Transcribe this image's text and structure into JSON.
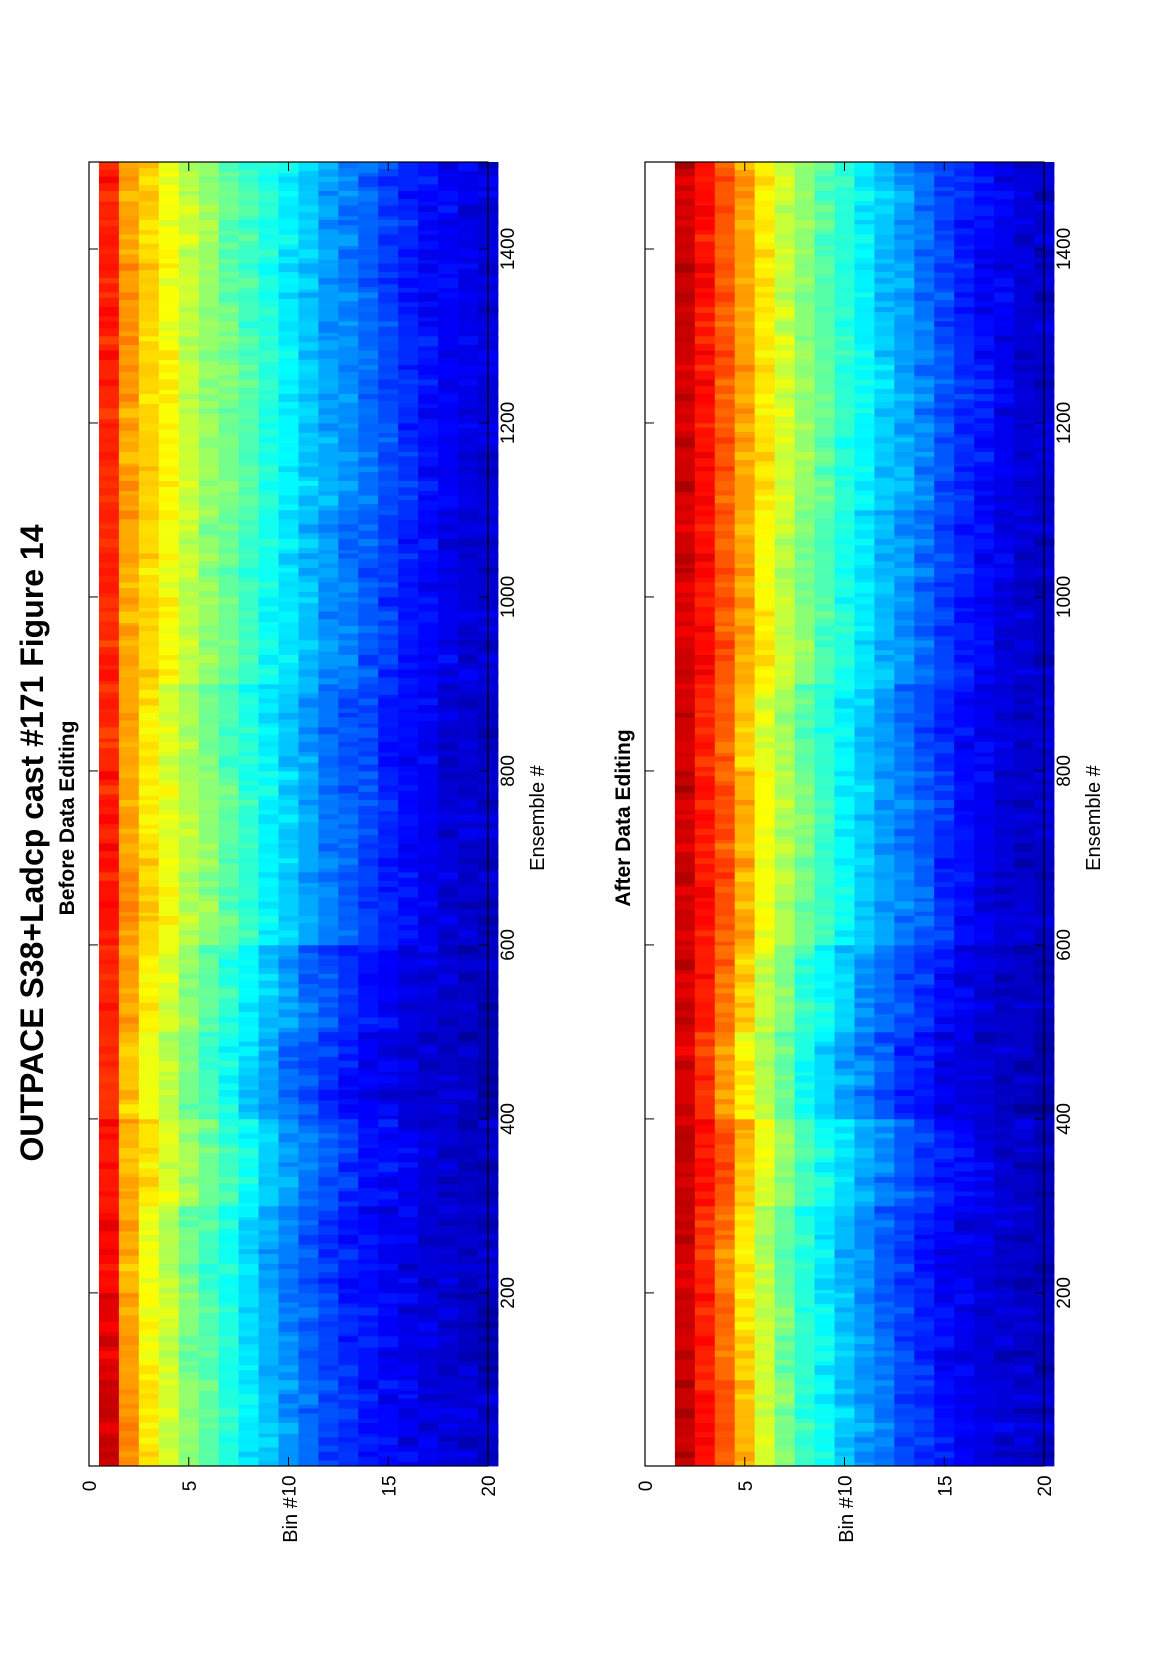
{
  "figure_title": "OUTPACE S38+Ladcp cast #171  Figure 14",
  "orientation": "rotated 90° counter-clockwise",
  "colormap": "jet",
  "chart_data": [
    {
      "type": "heatmap",
      "title": "Before Data Editing",
      "xlabel": "Ensemble #",
      "ylabel": "Bin #",
      "xlim": [
        1,
        1500
      ],
      "ylim": [
        0,
        20
      ],
      "y_reversed": true,
      "x_ticks": [
        200,
        400,
        600,
        800,
        1000,
        1200,
        1400
      ],
      "y_ticks": [
        0,
        5,
        10,
        15,
        20
      ],
      "x_tick_labels": [
        "200",
        "400",
        "600",
        "800",
        "1000",
        "1200",
        "1400"
      ],
      "y_tick_labels": [
        "0",
        "5",
        "10",
        "15",
        "20"
      ],
      "bins": [
        1,
        2,
        3,
        4,
        5,
        6,
        7,
        8,
        9,
        10,
        11,
        12,
        13,
        14,
        15,
        16,
        17,
        18,
        19,
        20
      ],
      "ensembles": [
        50,
        150,
        250,
        350,
        450,
        550,
        650,
        750,
        850,
        950,
        1050,
        1150,
        1250,
        1350,
        1450
      ],
      "value_scale": "normalized 0-1 (jet colormap, no colorbar shown)",
      "values": [
        [
          0.92,
          0.9,
          0.87,
          0.85,
          0.83,
          0.84,
          0.86,
          0.85,
          0.84,
          0.84,
          0.84,
          0.84,
          0.84,
          0.85,
          0.85
        ],
        [
          0.74,
          0.72,
          0.7,
          0.7,
          0.68,
          0.72,
          0.73,
          0.72,
          0.71,
          0.71,
          0.71,
          0.71,
          0.72,
          0.72,
          0.72
        ],
        [
          0.65,
          0.63,
          0.62,
          0.65,
          0.61,
          0.64,
          0.66,
          0.65,
          0.64,
          0.66,
          0.66,
          0.67,
          0.67,
          0.67,
          0.67
        ],
        [
          0.58,
          0.57,
          0.55,
          0.59,
          0.55,
          0.58,
          0.61,
          0.6,
          0.59,
          0.62,
          0.61,
          0.62,
          0.62,
          0.62,
          0.62
        ],
        [
          0.52,
          0.5,
          0.49,
          0.54,
          0.49,
          0.52,
          0.56,
          0.55,
          0.54,
          0.57,
          0.56,
          0.57,
          0.57,
          0.57,
          0.57
        ],
        [
          0.46,
          0.45,
          0.44,
          0.48,
          0.44,
          0.47,
          0.52,
          0.51,
          0.49,
          0.52,
          0.51,
          0.53,
          0.53,
          0.52,
          0.52
        ],
        [
          0.41,
          0.4,
          0.39,
          0.43,
          0.39,
          0.42,
          0.47,
          0.47,
          0.45,
          0.48,
          0.47,
          0.49,
          0.49,
          0.48,
          0.48
        ],
        [
          0.36,
          0.35,
          0.34,
          0.38,
          0.33,
          0.37,
          0.42,
          0.42,
          0.4,
          0.43,
          0.43,
          0.45,
          0.45,
          0.44,
          0.44
        ],
        [
          0.31,
          0.3,
          0.29,
          0.33,
          0.28,
          0.32,
          0.37,
          0.37,
          0.36,
          0.39,
          0.39,
          0.41,
          0.41,
          0.4,
          0.4
        ],
        [
          0.27,
          0.26,
          0.25,
          0.28,
          0.24,
          0.27,
          0.33,
          0.33,
          0.32,
          0.35,
          0.35,
          0.37,
          0.37,
          0.36,
          0.36
        ],
        [
          0.23,
          0.22,
          0.21,
          0.24,
          0.2,
          0.23,
          0.29,
          0.29,
          0.28,
          0.31,
          0.31,
          0.33,
          0.33,
          0.32,
          0.32
        ],
        [
          0.2,
          0.19,
          0.18,
          0.21,
          0.17,
          0.2,
          0.25,
          0.25,
          0.24,
          0.27,
          0.27,
          0.29,
          0.29,
          0.28,
          0.28
        ],
        [
          0.17,
          0.16,
          0.15,
          0.18,
          0.14,
          0.17,
          0.22,
          0.22,
          0.21,
          0.24,
          0.24,
          0.26,
          0.26,
          0.25,
          0.25
        ],
        [
          0.15,
          0.14,
          0.13,
          0.15,
          0.12,
          0.14,
          0.19,
          0.19,
          0.18,
          0.21,
          0.21,
          0.23,
          0.23,
          0.22,
          0.22
        ],
        [
          0.13,
          0.12,
          0.11,
          0.13,
          0.1,
          0.12,
          0.16,
          0.16,
          0.15,
          0.18,
          0.18,
          0.2,
          0.2,
          0.19,
          0.19
        ],
        [
          0.11,
          0.1,
          0.1,
          0.11,
          0.09,
          0.1,
          0.13,
          0.13,
          0.13,
          0.15,
          0.15,
          0.17,
          0.17,
          0.16,
          0.16
        ],
        [
          0.1,
          0.09,
          0.09,
          0.09,
          0.08,
          0.09,
          0.11,
          0.11,
          0.11,
          0.13,
          0.13,
          0.14,
          0.14,
          0.14,
          0.14
        ],
        [
          0.09,
          0.08,
          0.08,
          0.08,
          0.07,
          0.08,
          0.09,
          0.09,
          0.09,
          0.11,
          0.11,
          0.12,
          0.12,
          0.12,
          0.12
        ],
        [
          0.08,
          0.07,
          0.07,
          0.07,
          0.06,
          0.07,
          0.08,
          0.08,
          0.08,
          0.09,
          0.09,
          0.1,
          0.1,
          0.1,
          0.1
        ],
        [
          0.07,
          0.06,
          0.06,
          0.06,
          0.05,
          0.06,
          0.07,
          0.07,
          0.07,
          0.08,
          0.08,
          0.09,
          0.09,
          0.09,
          0.09
        ]
      ]
    },
    {
      "type": "heatmap",
      "title": "After Data Editing",
      "xlabel": "Ensemble #",
      "ylabel": "Bin #",
      "xlim": [
        1,
        1500
      ],
      "ylim": [
        0,
        20
      ],
      "y_reversed": true,
      "x_ticks": [
        200,
        400,
        600,
        800,
        1000,
        1200,
        1400
      ],
      "y_ticks": [
        0,
        5,
        10,
        15,
        20
      ],
      "x_tick_labels": [
        "200",
        "400",
        "600",
        "800",
        "1000",
        "1200",
        "1400"
      ],
      "y_tick_labels": [
        "0",
        "5",
        "10",
        "15",
        "20"
      ],
      "bins": [
        1,
        2,
        3,
        4,
        5,
        6,
        7,
        8,
        9,
        10,
        11,
        12,
        13,
        14,
        15,
        16,
        17,
        18,
        19,
        20
      ],
      "ensembles": [
        50,
        150,
        250,
        350,
        450,
        550,
        650,
        750,
        850,
        950,
        1050,
        1150,
        1250,
        1350,
        1450
      ],
      "value_scale": "normalized 0-1 (jet colormap, no colorbar shown)",
      "values": [
        [
          null,
          null,
          null,
          null,
          null,
          null,
          null,
          null,
          null,
          null,
          null,
          null,
          null,
          null,
          null
        ],
        [
          0.93,
          0.92,
          0.92,
          0.94,
          0.91,
          0.92,
          0.93,
          0.93,
          0.92,
          0.92,
          0.92,
          0.92,
          0.92,
          0.93,
          0.93
        ],
        [
          0.86,
          0.85,
          0.84,
          0.87,
          0.83,
          0.85,
          0.86,
          0.86,
          0.85,
          0.86,
          0.86,
          0.86,
          0.86,
          0.86,
          0.86
        ],
        [
          0.79,
          0.77,
          0.75,
          0.79,
          0.74,
          0.77,
          0.8,
          0.79,
          0.78,
          0.79,
          0.79,
          0.79,
          0.79,
          0.79,
          0.79
        ],
        [
          0.69,
          0.66,
          0.64,
          0.69,
          0.63,
          0.67,
          0.71,
          0.7,
          0.68,
          0.71,
          0.71,
          0.72,
          0.72,
          0.72,
          0.72
        ],
        [
          0.59,
          0.57,
          0.55,
          0.6,
          0.55,
          0.58,
          0.62,
          0.62,
          0.6,
          0.64,
          0.63,
          0.65,
          0.65,
          0.64,
          0.64
        ],
        [
          0.5,
          0.49,
          0.47,
          0.52,
          0.47,
          0.5,
          0.55,
          0.55,
          0.53,
          0.57,
          0.56,
          0.58,
          0.58,
          0.57,
          0.57
        ],
        [
          0.43,
          0.42,
          0.41,
          0.45,
          0.4,
          0.43,
          0.49,
          0.49,
          0.47,
          0.51,
          0.5,
          0.52,
          0.52,
          0.51,
          0.51
        ],
        [
          0.38,
          0.37,
          0.36,
          0.39,
          0.34,
          0.38,
          0.43,
          0.43,
          0.42,
          0.45,
          0.45,
          0.47,
          0.47,
          0.46,
          0.46
        ],
        [
          0.33,
          0.32,
          0.31,
          0.34,
          0.29,
          0.33,
          0.38,
          0.38,
          0.37,
          0.4,
          0.4,
          0.42,
          0.42,
          0.41,
          0.41
        ],
        [
          0.28,
          0.27,
          0.26,
          0.29,
          0.25,
          0.28,
          0.33,
          0.33,
          0.32,
          0.35,
          0.35,
          0.37,
          0.37,
          0.36,
          0.36
        ],
        [
          0.24,
          0.23,
          0.22,
          0.25,
          0.21,
          0.24,
          0.29,
          0.29,
          0.28,
          0.31,
          0.31,
          0.33,
          0.33,
          0.32,
          0.32
        ],
        [
          0.2,
          0.19,
          0.18,
          0.21,
          0.17,
          0.2,
          0.25,
          0.25,
          0.24,
          0.27,
          0.27,
          0.29,
          0.29,
          0.28,
          0.28
        ],
        [
          0.17,
          0.16,
          0.15,
          0.18,
          0.14,
          0.17,
          0.21,
          0.21,
          0.2,
          0.23,
          0.23,
          0.25,
          0.25,
          0.24,
          0.24
        ],
        [
          0.14,
          0.13,
          0.12,
          0.15,
          0.11,
          0.14,
          0.17,
          0.17,
          0.16,
          0.19,
          0.19,
          0.21,
          0.21,
          0.2,
          0.2
        ],
        [
          0.12,
          0.11,
          0.1,
          0.12,
          0.09,
          0.11,
          0.14,
          0.14,
          0.13,
          0.16,
          0.16,
          0.17,
          0.17,
          0.16,
          0.16
        ],
        [
          0.1,
          0.09,
          0.09,
          0.1,
          0.08,
          0.09,
          0.11,
          0.11,
          0.11,
          0.13,
          0.13,
          0.14,
          0.14,
          0.13,
          0.13
        ],
        [
          0.09,
          0.08,
          0.08,
          0.08,
          0.07,
          0.08,
          0.09,
          0.09,
          0.09,
          0.1,
          0.1,
          0.11,
          0.11,
          0.11,
          0.11
        ],
        [
          0.08,
          0.07,
          0.07,
          0.07,
          0.06,
          0.07,
          0.08,
          0.08,
          0.08,
          0.08,
          0.08,
          0.09,
          0.09,
          0.09,
          0.09
        ],
        [
          0.07,
          0.06,
          0.06,
          0.06,
          0.05,
          0.06,
          0.07,
          0.07,
          0.07,
          0.07,
          0.07,
          0.08,
          0.08,
          0.08,
          0.08
        ]
      ]
    }
  ]
}
